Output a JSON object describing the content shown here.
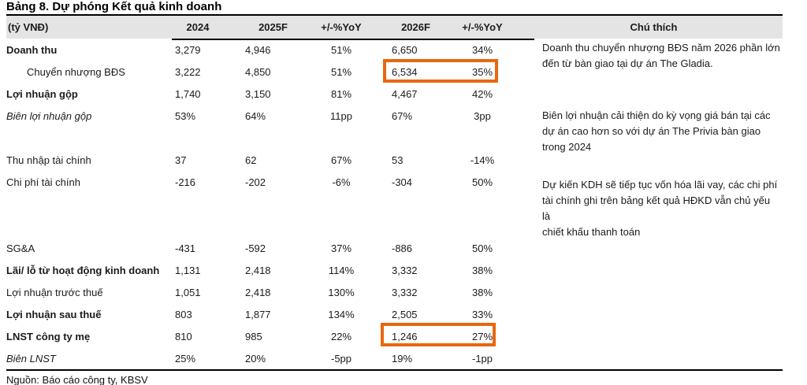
{
  "title": "Bảng 8. Dự phóng Kết quả kinh doanh",
  "source": "Nguồn: Báo cáo công ty, KBSV",
  "colors": {
    "highlight_orange": "#E8680E",
    "header_background": "#E4E4E4",
    "text": "#1b1b1b"
  },
  "table": {
    "columns": [
      "(tỷ VNĐ)",
      "2024",
      "2025F",
      "+/-%YoY",
      "2026F",
      "+/-%YoY",
      "Chú thích"
    ],
    "rows": [
      {
        "label": "Doanh thu",
        "values": [
          "3,279",
          "4,946",
          "51%",
          "6,650",
          "34%"
        ]
      },
      {
        "label": "Chuyển nhượng BĐS",
        "values": [
          "3,222",
          "4,850",
          "51%",
          "6,534",
          "35%"
        ],
        "highlighted_2026": true
      },
      {
        "label": "Lợi nhuận gộp",
        "values": [
          "1,740",
          "3,150",
          "81%",
          "4,467",
          "42%"
        ]
      },
      {
        "label": "Biên lợi nhuận gộp",
        "values": [
          "53%",
          "64%",
          "11pp",
          "67%",
          "3pp"
        ]
      },
      {
        "label": "Thu nhập tài chính",
        "values": [
          "37",
          "62",
          "67%",
          "53",
          "-14%"
        ]
      },
      {
        "label": "Chi phí tài chính",
        "values": [
          "-216",
          "-202",
          "-6%",
          "-304",
          "50%"
        ]
      },
      {
        "label": "SG&A",
        "values": [
          "-431",
          "-592",
          "37%",
          "-886",
          "50%"
        ]
      },
      {
        "label": "Lãi/ lỗ từ hoạt động kinh doanh",
        "values": [
          "1,131",
          "2,418",
          "114%",
          "3,332",
          "38%"
        ]
      },
      {
        "label": "Lợi nhuận trước thuế",
        "values": [
          "1,051",
          "2,418",
          "130%",
          "3,332",
          "38%"
        ]
      },
      {
        "label": "Lợi nhuận sau thuế",
        "values": [
          "803",
          "1,877",
          "134%",
          "2,505",
          "33%"
        ]
      },
      {
        "label": "LNST công ty mẹ",
        "values": [
          "810",
          "985",
          "22%",
          "1,246",
          "27%"
        ],
        "highlighted_2026": true
      },
      {
        "label": "Biên LNST",
        "values": [
          "25%",
          "20%",
          "-5pp",
          "19%",
          "-1pp"
        ]
      }
    ],
    "notes": [
      {
        "lines": [
          "Doanh thu chuyển nhượng BĐS năm 2026 phần lớn",
          "đến từ bàn giao tại dự án The Gladia."
        ]
      },
      {
        "lines": [
          "Biên lợi nhuận cải thiện do kỳ vọng giá bán tại các",
          "dự án cao hơn so với dự án The Privia bàn giao",
          "trong 2024"
        ]
      },
      {
        "lines": [
          "Dự kiến KDH sẽ tiếp tục vốn hóa lãi vay, các chi phí",
          "tài chính ghi trên bảng kết quả HĐKD vẫn chủ yếu là",
          "chiết khấu thanh toán"
        ]
      }
    ]
  }
}
